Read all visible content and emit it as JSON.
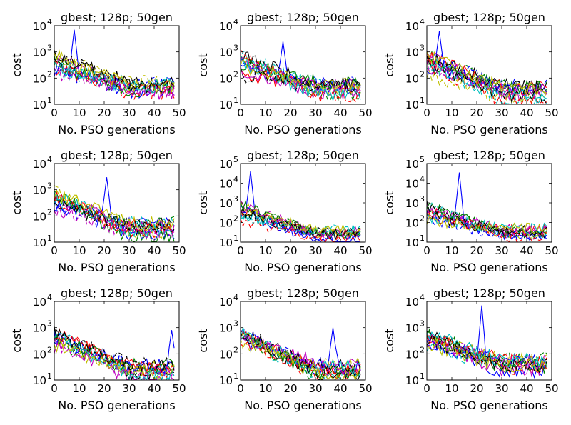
{
  "colors": [
    "#0000ff",
    "#008000",
    "#ff0000",
    "#00bfbf",
    "#bf00bf",
    "#bfbf00",
    "#000000"
  ],
  "chart_data": [
    {
      "type": "line",
      "title": "gbest; 128p; 50gen",
      "xlabel": "No. PSO generations",
      "ylabel": "cost",
      "xlim": [
        0,
        50
      ],
      "ylim": [
        10,
        10000
      ],
      "yscale": "log",
      "xticks": [
        "0",
        "10",
        "20",
        "30",
        "40",
        "50"
      ],
      "ymax_exp": "4",
      "series_count": 14,
      "end_cost": 40,
      "spike": {
        "x": 8,
        "y": 7000
      },
      "seed": 11
    },
    {
      "type": "line",
      "title": "gbest; 128p; 50gen",
      "xlabel": "No. PSO generations",
      "ylabel": "cost",
      "xlim": [
        0,
        50
      ],
      "ylim": [
        10,
        10000
      ],
      "yscale": "log",
      "xticks": [
        "0",
        "10",
        "20",
        "30",
        "40",
        "50"
      ],
      "ymax_exp": "4",
      "series_count": 14,
      "end_cost": 45,
      "spike": {
        "x": 17,
        "y": 2500
      },
      "seed": 23
    },
    {
      "type": "line",
      "title": "gbest; 128p; 50gen",
      "xlabel": "No. PSO generations",
      "ylabel": "cost",
      "xlim": [
        0,
        50
      ],
      "ylim": [
        10,
        10000
      ],
      "yscale": "log",
      "xticks": [
        "0",
        "10",
        "20",
        "30",
        "40",
        "50"
      ],
      "ymax_exp": "4",
      "series_count": 14,
      "end_cost": 30,
      "spike": {
        "x": 5,
        "y": 6000
      },
      "seed": 37
    },
    {
      "type": "line",
      "title": "gbest; 128p; 50gen",
      "xlabel": "No. PSO generations",
      "ylabel": "cost",
      "xlim": [
        0,
        50
      ],
      "ylim": [
        10,
        10000
      ],
      "yscale": "log",
      "xticks": [
        "0",
        "10",
        "20",
        "30",
        "40",
        "50"
      ],
      "ymax_exp": "4",
      "series_count": 14,
      "end_cost": 30,
      "spike": {
        "x": 21,
        "y": 3000
      },
      "seed": 41
    },
    {
      "type": "line",
      "title": "gbest; 128p; 50gen",
      "xlabel": "No. PSO generations",
      "ylabel": "cost",
      "xlim": [
        0,
        50
      ],
      "ylim": [
        10,
        100000
      ],
      "yscale": "log",
      "xticks": [
        "0",
        "10",
        "20",
        "30",
        "40",
        "50"
      ],
      "ymax_exp": "5",
      "series_count": 14,
      "end_cost": 25,
      "spike": {
        "x": 4,
        "y": 40000
      },
      "seed": 53
    },
    {
      "type": "line",
      "title": "gbest; 128p; 50gen",
      "xlabel": "No. PSO generations",
      "ylabel": "cost",
      "xlim": [
        0,
        50
      ],
      "ylim": [
        10,
        100000
      ],
      "yscale": "log",
      "xticks": [
        "0",
        "10",
        "20",
        "30",
        "40",
        "50"
      ],
      "ymax_exp": "5",
      "series_count": 14,
      "end_cost": 30,
      "spike": {
        "x": 13,
        "y": 35000
      },
      "seed": 67
    },
    {
      "type": "line",
      "title": "gbest; 128p; 50gen",
      "xlabel": "No. PSO generations",
      "ylabel": "cost",
      "xlim": [
        0,
        50
      ],
      "ylim": [
        10,
        10000
      ],
      "yscale": "log",
      "xticks": [
        "0",
        "10",
        "20",
        "30",
        "40",
        "50"
      ],
      "ymax_exp": "4",
      "series_count": 14,
      "end_cost": 25,
      "spike": {
        "x": 47,
        "y": 800
      },
      "seed": 71
    },
    {
      "type": "line",
      "title": "gbest; 128p; 50gen",
      "xlabel": "No. PSO generations",
      "ylabel": "cost",
      "xlim": [
        0,
        50
      ],
      "ylim": [
        10,
        10000
      ],
      "yscale": "log",
      "xticks": [
        "0",
        "10",
        "20",
        "30",
        "40",
        "50"
      ],
      "ymax_exp": "4",
      "series_count": 14,
      "end_cost": 25,
      "spike": {
        "x": 37,
        "y": 1000
      },
      "seed": 83
    },
    {
      "type": "line",
      "title": "gbest; 128p; 50gen",
      "xlabel": "No. PSO generations",
      "ylabel": "cost",
      "xlim": [
        0,
        50
      ],
      "ylim": [
        10,
        10000
      ],
      "yscale": "log",
      "xticks": [
        "0",
        "10",
        "20",
        "30",
        "40",
        "50"
      ],
      "ymax_exp": "4",
      "series_count": 14,
      "end_cost": 40,
      "spike": {
        "x": 22,
        "y": 7000
      },
      "seed": 97
    }
  ]
}
